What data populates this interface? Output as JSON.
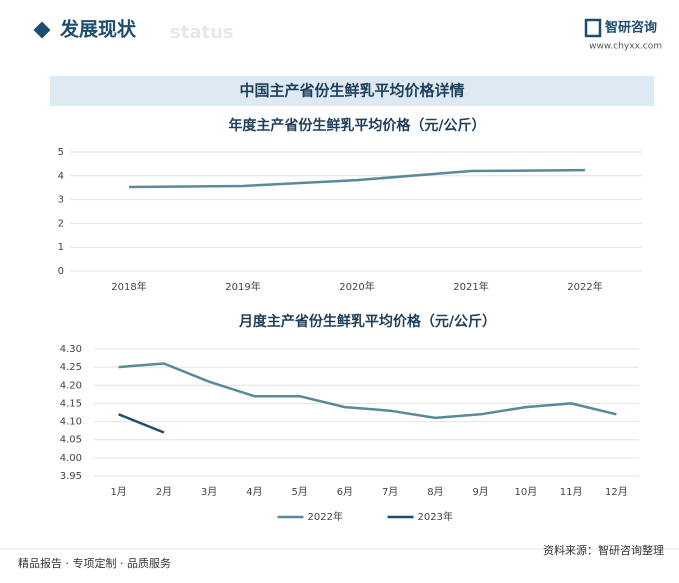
{
  "header": {
    "title": "发展现状",
    "ghost": "status",
    "logo": "智研咨询",
    "url": "www.chyxx.com"
  },
  "banner": "中国主产省份生鲜乳平均价格详情",
  "chart_data": [
    {
      "type": "line",
      "title": "年度主产省份生鲜乳平均价格（元/公斤）",
      "categories": [
        "2018年",
        "2019年",
        "2020年",
        "2021年",
        "2022年"
      ],
      "values": [
        3.53,
        3.57,
        3.82,
        4.2,
        4.24
      ],
      "color": "#5a8a9a",
      "ylim": [
        0,
        5
      ],
      "yticks": [
        0,
        1,
        2,
        3,
        4,
        5
      ],
      "grid": true
    },
    {
      "type": "line",
      "title": "月度主产省份生鲜乳平均价格（元/公斤）",
      "categories": [
        "1月",
        "2月",
        "3月",
        "4月",
        "5月",
        "6月",
        "7月",
        "8月",
        "9月",
        "10月",
        "11月",
        "12月"
      ],
      "series": [
        {
          "name": "2022年",
          "color": "#5a8a9a",
          "values": [
            4.25,
            4.26,
            4.21,
            4.17,
            4.17,
            4.14,
            4.13,
            4.11,
            4.12,
            4.14,
            4.15,
            4.12
          ]
        },
        {
          "name": "2023年",
          "color": "#1e4e6e",
          "values": [
            4.12,
            4.07,
            null,
            null,
            null,
            null,
            null,
            null,
            null,
            null,
            null,
            null
          ]
        }
      ],
      "ylim": [
        3.95,
        4.3
      ],
      "yticks": [
        3.95,
        {
          "value": 4,
          "label": "4.00"
        },
        4.05,
        {
          "value": 4.1,
          "label": "4.10"
        },
        4.15,
        {
          "value": 4.2,
          "label": "4.20"
        },
        4.25,
        {
          "value": 4.3,
          "label": "4.30"
        }
      ],
      "grid": true,
      "legend": "bottom"
    }
  ],
  "footer": {
    "left": "精品报告 · 专项定制 · 品质服务",
    "right": "资料来源：智研咨询整理"
  }
}
